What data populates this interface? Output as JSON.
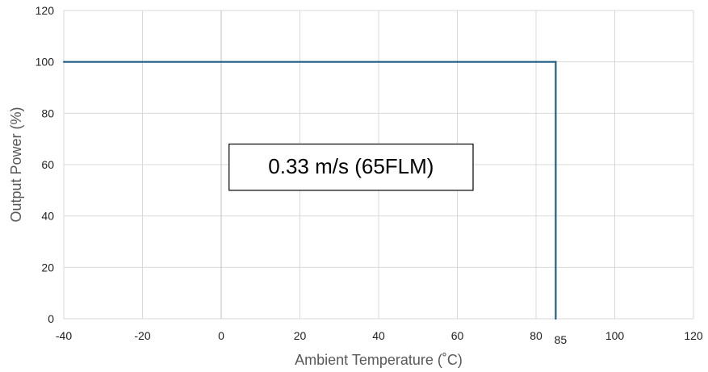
{
  "chart_data": {
    "type": "line",
    "xlabel": "Ambient Temperature (˚C)",
    "ylabel": "Output Power (%)",
    "xlim": [
      -40,
      120
    ],
    "ylim": [
      0,
      120
    ],
    "x_ticks": [
      -40,
      -20,
      0,
      20,
      40,
      60,
      80,
      100,
      120
    ],
    "x_ticks_labels": [
      "-40",
      "-20",
      "0",
      "20",
      "40",
      "60",
      "80",
      "100",
      "120"
    ],
    "extra_x_tick": {
      "value": 85,
      "label": "85"
    },
    "y_ticks": [
      0,
      20,
      40,
      60,
      80,
      100,
      120
    ],
    "y_ticks_labels": [
      "0",
      "20",
      "40",
      "60",
      "80",
      "100",
      "120"
    ],
    "grid": true,
    "series": [
      {
        "points": [
          {
            "x": -40,
            "y": 100
          },
          {
            "x": 85,
            "y": 100
          },
          {
            "x": 85,
            "y": 0
          }
        ],
        "color": "#1f5f86"
      }
    ],
    "annotation": {
      "text": "0.33 m/s (65FLM)",
      "x_range": [
        2,
        64
      ],
      "y_range": [
        50,
        68
      ]
    }
  }
}
